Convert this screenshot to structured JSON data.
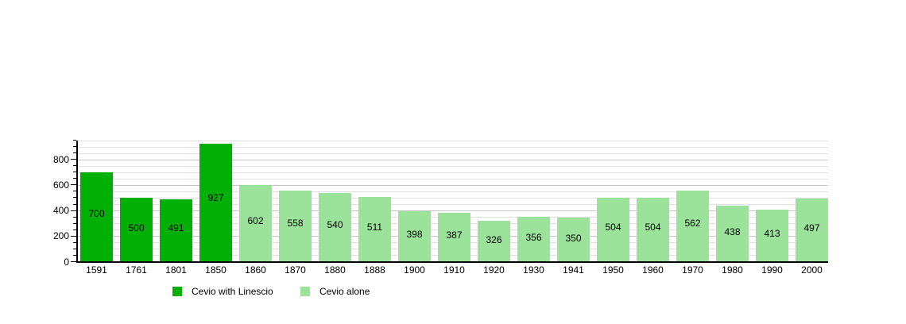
{
  "chart_data": {
    "type": "bar",
    "title": "",
    "xlabel": "",
    "ylabel": "",
    "categories": [
      "1591",
      "1761",
      "1801",
      "1850",
      "1860",
      "1870",
      "1880",
      "1888",
      "1900",
      "1910",
      "1920",
      "1930",
      "1941",
      "1950",
      "1960",
      "1970",
      "1980",
      "1990",
      "2000"
    ],
    "values": [
      700,
      500,
      491,
      927,
      602,
      558,
      540,
      511,
      398,
      387,
      326,
      356,
      350,
      504,
      504,
      562,
      438,
      413,
      497
    ],
    "series": [
      {
        "name": "Cevio with Linescio",
        "color": "#00b004",
        "category_indices": [
          0,
          1,
          2,
          3
        ]
      },
      {
        "name": "Cevio alone",
        "color": "#9be29b",
        "category_indices": [
          4,
          5,
          6,
          7,
          8,
          9,
          10,
          11,
          12,
          13,
          14,
          15,
          16,
          17,
          18
        ]
      }
    ],
    "ylim": [
      0,
      950
    ],
    "yticks": [
      0,
      200,
      400,
      600,
      800
    ],
    "minor_grid_step": 50,
    "grid": "on",
    "bar_value_labels": true,
    "legend_position": "bottom-left"
  },
  "legend": {
    "items": [
      {
        "label": "Cevio with Linescio",
        "color": "#00b004"
      },
      {
        "label": "Cevio alone",
        "color": "#9be29b"
      }
    ]
  },
  "colors": {
    "grid_minor": "#e0e0e0",
    "grid_major": "#c6c6c6",
    "axis": "#000000",
    "background": "#ffffff"
  }
}
